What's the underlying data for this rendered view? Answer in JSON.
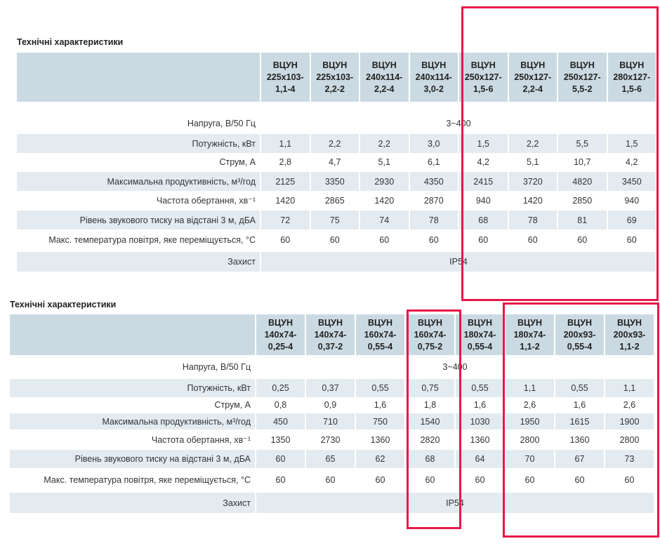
{
  "tables": [
    {
      "title": "Технічні характеристики",
      "models": [
        "ВЦУН 225x103-1,1-4",
        "ВЦУН 225x103-2,2-2",
        "ВЦУН 240x114-2,2-4",
        "ВЦУН 240x114-3,0-2",
        "ВЦУН 250x127-1,5-6",
        "ВЦУН 250x127-2,2-4",
        "ВЦУН 250x127-5,5-2",
        "ВЦУН 280x127-1,5-6"
      ],
      "rows": [
        {
          "label": "Напруга, В/50 Гц",
          "span": "3~400"
        },
        {
          "label": "Потужність, кВт",
          "values": [
            "1,1",
            "2,2",
            "2,2",
            "3,0",
            "1,5",
            "2,2",
            "5,5",
            "1,5"
          ]
        },
        {
          "label": "Струм, А",
          "values": [
            "2,8",
            "4,7",
            "5,1",
            "6,1",
            "4,2",
            "5,1",
            "10,7",
            "4,2"
          ]
        },
        {
          "label": "Максимальна продуктивність, м³/год",
          "values": [
            "2125",
            "3350",
            "2930",
            "4350",
            "2415",
            "3720",
            "4820",
            "3450"
          ]
        },
        {
          "label": "Частота обертання, хв⁻¹",
          "values": [
            "1420",
            "2865",
            "1420",
            "2870",
            "940",
            "1420",
            "2850",
            "940"
          ]
        },
        {
          "label": "Рівень звукового тиску на відстані 3 м, дБА",
          "values": [
            "72",
            "75",
            "74",
            "78",
            "68",
            "78",
            "81",
            "69"
          ]
        },
        {
          "label": "Макс. температура повітря, яке переміщується, °C",
          "values": [
            "60",
            "60",
            "60",
            "60",
            "60",
            "60",
            "60",
            "60"
          ]
        },
        {
          "label": "Захист",
          "span": "IP54"
        }
      ]
    },
    {
      "title": "Технічні характеристики",
      "models": [
        "ВЦУН 140x74-0,25-4",
        "ВЦУН 140x74-0,37-2",
        "ВЦУН 160x74-0,55-4",
        "ВЦУН 160x74-0,75-2",
        "ВЦУН 180x74-0,55-4",
        "ВЦУН 180x74-1,1-2",
        "ВЦУН 200x93-0,55-4",
        "ВЦУН 200x93-1,1-2"
      ],
      "rows": [
        {
          "label": "Напруга, В/50 Гц",
          "span": "3~400"
        },
        {
          "label": "Потужність, кВт",
          "values": [
            "0,25",
            "0,37",
            "0,55",
            "0,75",
            "0,55",
            "1,1",
            "0,55",
            "1,1"
          ]
        },
        {
          "label": "Струм, А",
          "values": [
            "0,8",
            "0,9",
            "1,6",
            "1,8",
            "1,6",
            "2,6",
            "1,6",
            "2,6"
          ]
        },
        {
          "label": "Максимальна продуктивність, м³/год",
          "values": [
            "450",
            "710",
            "750",
            "1540",
            "1030",
            "1950",
            "1615",
            "1900"
          ]
        },
        {
          "label": "Частота обертання, хв⁻¹",
          "values": [
            "1350",
            "2730",
            "1360",
            "2820",
            "1360",
            "2800",
            "1360",
            "2800"
          ]
        },
        {
          "label": "Рівень звукового тиску на відстані 3 м, дБА",
          "values": [
            "60",
            "65",
            "62",
            "68",
            "64",
            "70",
            "67",
            "73"
          ]
        },
        {
          "label": "Макс. температура повітря, яке переміщується, °C",
          "values": [
            "60",
            "60",
            "60",
            "60",
            "60",
            "60",
            "60",
            "60"
          ]
        },
        {
          "label": "Захист",
          "span": "IP54"
        }
      ]
    }
  ],
  "highlight_color": "#e8174a"
}
